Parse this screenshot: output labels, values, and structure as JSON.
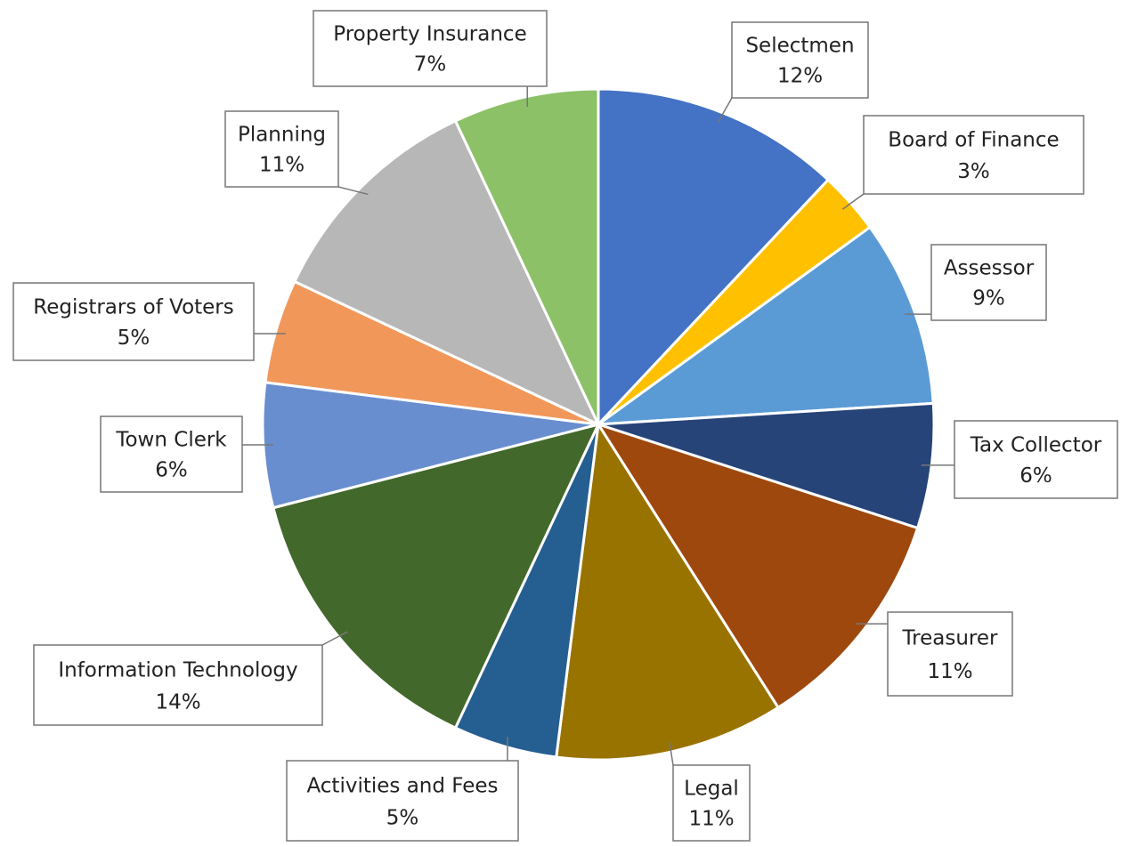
{
  "chart_data": {
    "type": "pie",
    "categories": [
      "Selectmen",
      "Board of Finance",
      "Assessor",
      "Tax Collector",
      "Treasurer",
      "Legal",
      "Activities and Fees",
      "Information Technology",
      "Town Clerk",
      "Registrars of Voters",
      "Planning",
      "Property Insurance"
    ],
    "values": [
      12,
      3,
      9,
      6,
      11,
      11,
      5,
      14,
      6,
      5,
      11,
      7
    ],
    "value_labels": [
      "12%",
      "3%",
      "9%",
      "6%",
      "11%",
      "11%",
      "5%",
      "14%",
      "6%",
      "5%",
      "11%",
      "7%"
    ],
    "colors": [
      "#4472c4",
      "#ffc000",
      "#5b9bd5",
      "#264478",
      "#9e480e",
      "#997300",
      "#255e91",
      "#43682b",
      "#698ed0",
      "#f1975a",
      "#b7b7b7",
      "#8cc168"
    ]
  }
}
